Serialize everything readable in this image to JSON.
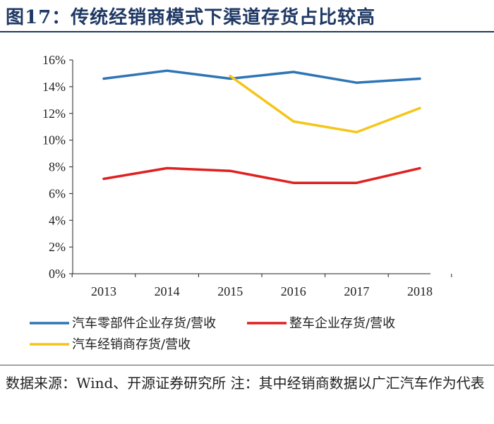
{
  "header": {
    "title": "图17：传统经销商模式下渠道存货占比较高"
  },
  "chart_data": {
    "type": "line",
    "title": "图17：传统经销商模式下渠道存货占比较高",
    "xlabel": "",
    "ylabel": "",
    "categories": [
      "2013",
      "2014",
      "2015",
      "2016",
      "2017",
      "2018"
    ],
    "ylim": [
      0,
      16
    ],
    "yticks": [
      "0%",
      "2%",
      "4%",
      "6%",
      "8%",
      "10%",
      "12%",
      "14%",
      "16%"
    ],
    "series": [
      {
        "name": "汽车零部件企业存货/营收",
        "color": "#2e75b6",
        "values": [
          14.6,
          15.2,
          14.6,
          15.1,
          14.3,
          14.6
        ]
      },
      {
        "name": "整车企业存货/营收",
        "color": "#e02020",
        "values": [
          7.1,
          7.9,
          7.7,
          6.8,
          6.8,
          7.9
        ]
      },
      {
        "name": "汽车经销商存货/营收",
        "color": "#f5c518",
        "values": [
          null,
          null,
          14.8,
          11.4,
          10.6,
          12.4
        ]
      }
    ],
    "legend": "bottom"
  },
  "footer": {
    "source": "数据来源：Wind、开源证券研究所  注：其中经销商数据以广汇汽车作为代表"
  }
}
